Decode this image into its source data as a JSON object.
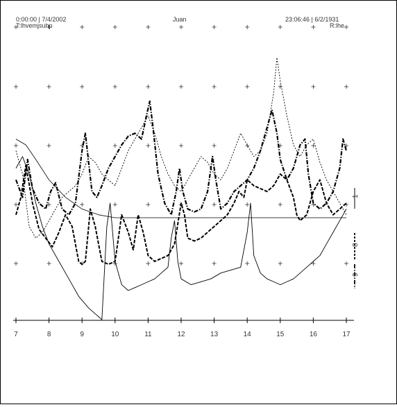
{
  "header": {
    "left_line1": "0:00:00 | 7/4/2002",
    "left_line2": "T:lhvemjsuhp",
    "center": "Juan",
    "right_line1": "23:06:46 | 6/2/1931",
    "right_line2": "R:lhe"
  },
  "chart_data": {
    "type": "line",
    "title": "Juan",
    "x_ticks": [
      7,
      8,
      9,
      10,
      11,
      12,
      13,
      14,
      15,
      16,
      17
    ],
    "xlim": [
      7,
      17
    ],
    "ylim": [
      0,
      100
    ],
    "grid": "cross-markers",
    "right_labels": [
      "1",
      "8",
      "9"
    ],
    "series": [
      {
        "style": "dash-dot-thick",
        "x": [
          7,
          7.2,
          7.35,
          7.5,
          7.7,
          7.9,
          8.05,
          8.2,
          8.4,
          8.6,
          8.8,
          9.0,
          9.1,
          9.2,
          9.3,
          9.45,
          9.6,
          9.8,
          10.0,
          10.2,
          10.4,
          10.6,
          10.8,
          10.95,
          11.05,
          11.15,
          11.3,
          11.5,
          11.7,
          11.85,
          11.95,
          12.05,
          12.2,
          12.4,
          12.6,
          12.8,
          12.95,
          13.05,
          13.2,
          13.4,
          13.6,
          13.8,
          14.0,
          14.2,
          14.4,
          14.6,
          14.75,
          14.9,
          15.0,
          15.2,
          15.4,
          15.6,
          15.75,
          15.85,
          16.0,
          16.2,
          16.4,
          16.6,
          16.8,
          16.9,
          17.0
        ],
        "y": [
          48,
          42,
          55,
          45,
          40,
          38,
          44,
          47,
          38,
          36,
          40,
          58,
          64,
          54,
          44,
          42,
          46,
          52,
          56,
          60,
          63,
          64,
          62,
          70,
          75,
          66,
          50,
          40,
          36,
          44,
          52,
          44,
          38,
          37,
          38,
          44,
          56,
          48,
          38,
          40,
          44,
          46,
          48,
          52,
          58,
          66,
          72,
          64,
          55,
          48,
          52,
          60,
          62,
          50,
          40,
          38,
          40,
          44,
          52,
          62,
          58
        ]
      },
      {
        "style": "dashed-bold",
        "x": [
          7,
          7.15,
          7.3,
          7.5,
          7.7,
          7.9,
          8.1,
          8.3,
          8.5,
          8.7,
          8.9,
          9.0,
          9.1,
          9.25,
          9.4,
          9.6,
          9.8,
          10.0,
          10.2,
          10.4,
          10.55,
          10.7,
          10.85,
          11.0,
          11.2,
          11.4,
          11.6,
          11.8,
          12.0,
          12.1,
          12.2,
          12.4,
          12.6,
          12.8,
          13.0,
          13.2,
          13.4,
          13.6,
          13.75,
          13.9,
          14.0,
          14.2,
          14.4,
          14.6,
          14.8,
          15.0,
          15.2,
          15.4,
          15.5,
          15.6,
          15.8,
          16.0,
          16.2,
          16.4,
          16.6,
          16.8,
          17.0
        ],
        "y": [
          36,
          42,
          53,
          40,
          31,
          28,
          25,
          30,
          36,
          32,
          20,
          19,
          20,
          38,
          32,
          20,
          19,
          20,
          36,
          30,
          24,
          36,
          30,
          22,
          20,
          21,
          22,
          26,
          40,
          36,
          28,
          27,
          28,
          30,
          32,
          34,
          36,
          40,
          44,
          42,
          48,
          46,
          45,
          44,
          46,
          50,
          48,
          42,
          36,
          34,
          36,
          44,
          48,
          40,
          36,
          38,
          40
        ]
      },
      {
        "style": "dotted",
        "x": [
          7,
          7.2,
          7.4,
          7.6,
          7.8,
          8.0,
          8.2,
          8.4,
          8.6,
          8.8,
          9.0,
          9.2,
          9.4,
          9.6,
          9.8,
          10.0,
          10.2,
          10.4,
          10.6,
          10.8,
          11.0,
          11.2,
          11.4,
          11.6,
          11.8,
          12.0,
          12.2,
          12.4,
          12.6,
          12.8,
          13.0,
          13.2,
          13.4,
          13.6,
          13.8,
          14.0,
          14.2,
          14.4,
          14.6,
          14.8,
          14.9,
          15.0,
          15.2,
          15.4,
          15.6,
          15.8,
          16.0,
          16.2,
          16.4,
          16.6,
          16.8,
          17.0
        ],
        "y": [
          58,
          50,
          32,
          28,
          30,
          34,
          38,
          42,
          44,
          46,
          50,
          56,
          54,
          50,
          48,
          46,
          52,
          58,
          62,
          66,
          70,
          64,
          56,
          50,
          46,
          44,
          48,
          52,
          56,
          54,
          50,
          48,
          52,
          58,
          64,
          60,
          56,
          58,
          64,
          78,
          90,
          82,
          70,
          60,
          56,
          60,
          62,
          54,
          48,
          44,
          40,
          36
        ]
      },
      {
        "style": "thin",
        "x": [
          7,
          7.2,
          7.4,
          7.6,
          7.8,
          8.0,
          8.3,
          8.6,
          8.9,
          9.2,
          9.4,
          9.6,
          9.75,
          9.85,
          10.0,
          10.2,
          10.4,
          10.6,
          10.8,
          11.0,
          11.2,
          11.4,
          11.6,
          11.7,
          11.8,
          11.9,
          12.0,
          12.3,
          12.6,
          12.9,
          13.2,
          13.5,
          13.8,
          14.0,
          14.1,
          14.2,
          14.4,
          14.6,
          14.8,
          15.0,
          15.2,
          15.4,
          15.6,
          15.8,
          16.0,
          16.2,
          16.4,
          16.6,
          16.8,
          17.0
        ],
        "y": [
          52,
          56,
          50,
          40,
          32,
          26,
          20,
          14,
          8,
          4,
          2,
          0,
          32,
          40,
          20,
          12,
          10,
          11,
          12,
          13,
          14,
          16,
          18,
          28,
          34,
          20,
          14,
          12,
          13,
          14,
          16,
          17,
          18,
          30,
          40,
          22,
          16,
          14,
          13,
          12,
          13,
          14,
          16,
          18,
          20,
          22,
          26,
          30,
          34,
          38
        ]
      },
      {
        "style": "thin-smooth",
        "x": [
          7,
          7.3,
          7.6,
          8.0,
          8.5,
          9.0,
          9.5,
          10.0,
          11.0,
          12.0,
          13.0,
          14.0,
          15.0,
          16.0,
          17.0
        ],
        "y": [
          62,
          60,
          55,
          48,
          42,
          38,
          36,
          35,
          35,
          35,
          35,
          35,
          35,
          35,
          35
        ]
      }
    ]
  }
}
